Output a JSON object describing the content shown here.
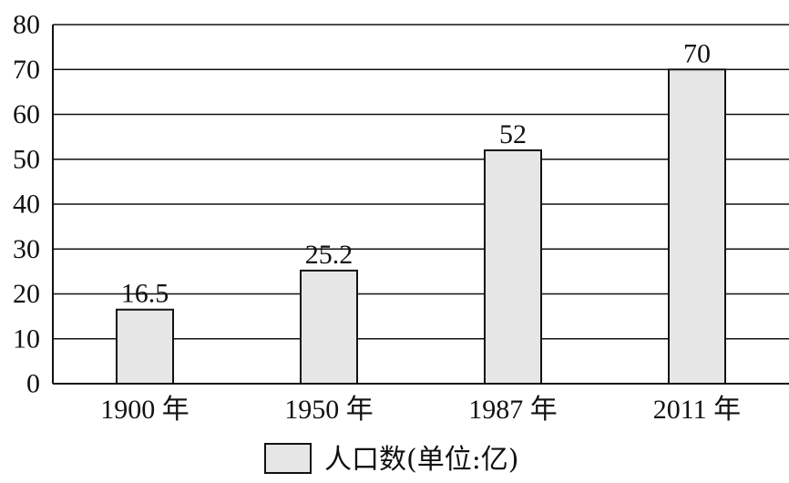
{
  "chart_data": {
    "type": "bar",
    "categories": [
      "1900 年",
      "1950 年",
      "1987 年",
      "2011 年"
    ],
    "values": [
      16.5,
      25.2,
      52,
      70
    ],
    "value_labels": [
      "16.5",
      "25.2",
      "52",
      "70"
    ],
    "yticks": [
      "0",
      "10",
      "20",
      "30",
      "40",
      "50",
      "60",
      "70",
      "80"
    ],
    "ylim": [
      0,
      80
    ],
    "grid": true,
    "legend": "bottom",
    "series": [
      {
        "name": "人口数(单位:亿)",
        "values": [
          16.5,
          25.2,
          52,
          70
        ]
      }
    ],
    "bar_color": "#e6e6e6",
    "line_color": "#111111"
  }
}
